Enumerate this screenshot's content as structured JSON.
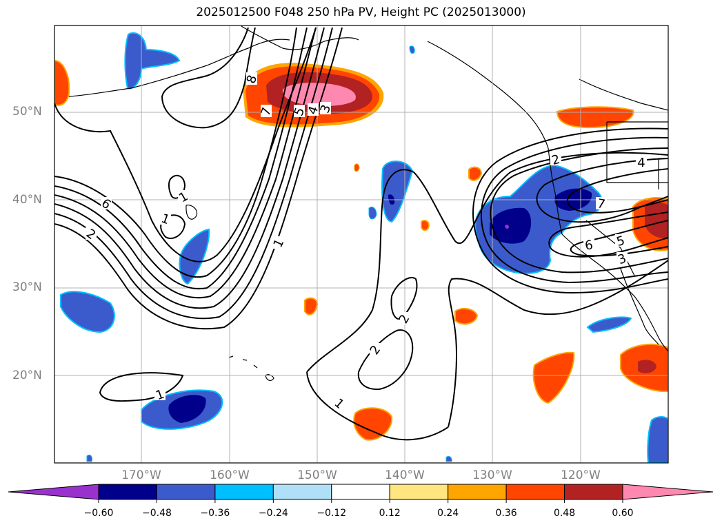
{
  "title": "2025012500 F048 250 hPa PV, Height PC (2025013000)",
  "lat_labels": [
    "50°N",
    "40°N",
    "30°N",
    "20°N"
  ],
  "lon_labels": [
    "170°W",
    "160°W",
    "150°W",
    "140°W",
    "130°W",
    "120°W"
  ],
  "colorbar": {
    "ticks": [
      "−0.60",
      "−0.48",
      "−0.36",
      "−0.24",
      "−0.12",
      "0.12",
      "0.24",
      "0.36",
      "0.48",
      "0.60"
    ],
    "colors": [
      "#9932cc",
      "#00008b",
      "#3b5bcc",
      "#00bfff",
      "#b0e0f8",
      "#ffffff",
      "#ffe680",
      "#ffa500",
      "#ff4500",
      "#b22222",
      "#ff88b0"
    ]
  },
  "contour_labels": [
    "6",
    "2",
    "1",
    "1",
    "1",
    "2",
    "2",
    "1",
    "1",
    "7",
    "5",
    "4",
    "3",
    "8",
    "2",
    "4",
    "7",
    "6",
    "5",
    "3"
  ],
  "colors": {
    "frame": "#000000",
    "grid": "#b0b0b0",
    "contour": "#000000"
  }
}
